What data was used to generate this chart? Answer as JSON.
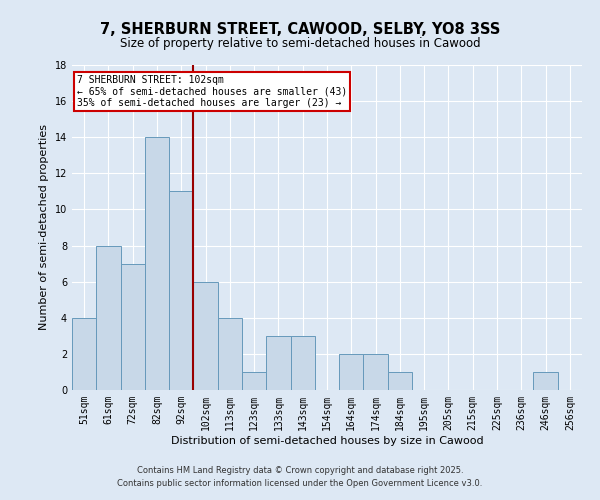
{
  "title": "7, SHERBURN STREET, CAWOOD, SELBY, YO8 3SS",
  "subtitle": "Size of property relative to semi-detached houses in Cawood",
  "xlabel": "Distribution of semi-detached houses by size in Cawood",
  "ylabel": "Number of semi-detached properties",
  "categories": [
    "51sqm",
    "61sqm",
    "72sqm",
    "82sqm",
    "92sqm",
    "102sqm",
    "113sqm",
    "123sqm",
    "133sqm",
    "143sqm",
    "154sqm",
    "164sqm",
    "174sqm",
    "184sqm",
    "195sqm",
    "205sqm",
    "215sqm",
    "225sqm",
    "236sqm",
    "246sqm",
    "256sqm"
  ],
  "values": [
    4,
    8,
    7,
    14,
    11,
    6,
    4,
    1,
    3,
    3,
    0,
    2,
    2,
    1,
    0,
    0,
    0,
    0,
    0,
    1,
    0
  ],
  "bar_color": "#c8d8e8",
  "bar_edge_color": "#6699bb",
  "ylim": [
    0,
    18
  ],
  "yticks": [
    0,
    2,
    4,
    6,
    8,
    10,
    12,
    14,
    16,
    18
  ],
  "vline_color": "#990000",
  "annotation_title": "7 SHERBURN STREET: 102sqm",
  "annotation_line1": "← 65% of semi-detached houses are smaller (43)",
  "annotation_line2": "35% of semi-detached houses are larger (23) →",
  "annotation_box_color": "#ffffff",
  "annotation_box_edge": "#cc0000",
  "footer_line1": "Contains HM Land Registry data © Crown copyright and database right 2025.",
  "footer_line2": "Contains public sector information licensed under the Open Government Licence v3.0.",
  "background_color": "#dde8f4",
  "plot_background": "#dde8f4",
  "grid_color": "#ffffff",
  "title_fontsize": 10.5,
  "subtitle_fontsize": 8.5,
  "axis_label_fontsize": 8,
  "tick_fontsize": 7,
  "footer_fontsize": 6
}
